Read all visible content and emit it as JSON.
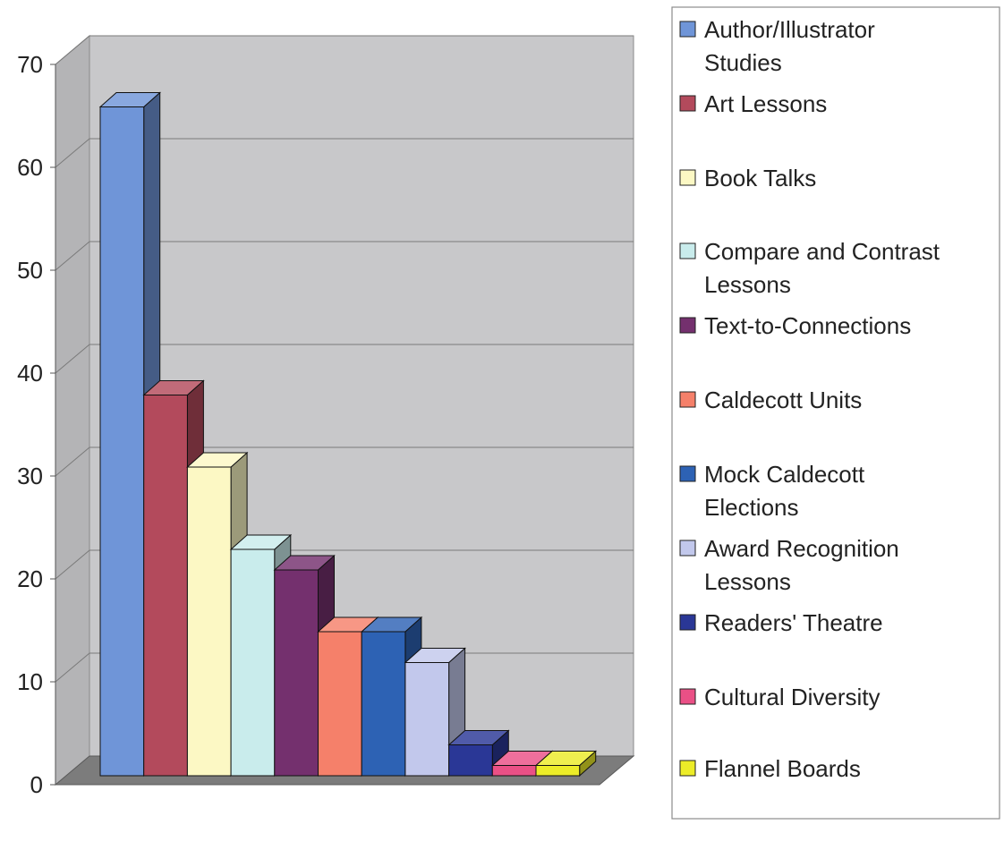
{
  "chart_data": {
    "type": "bar",
    "categories": [
      "Author/Illustrator Studies",
      "Art Lessons",
      "Book Talks",
      "Compare and Contrast Lessons",
      "Text-to-Connections",
      "Caldecott Units",
      "Mock Caldecott Elections",
      "Award Recognition Lessons",
      "Readers' Theatre",
      "Cultural Diversity",
      "Flannel Boards"
    ],
    "values": [
      65,
      37,
      30,
      22,
      20,
      14,
      14,
      11,
      3,
      1,
      1
    ],
    "colors": [
      "#6f95d8",
      "#b34a5c",
      "#fcf8c4",
      "#c9ecec",
      "#74306e",
      "#f5806a",
      "#2d62b4",
      "#c2c8ec",
      "#2a3796",
      "#ea5086",
      "#ecec28"
    ],
    "legend_lines": [
      [
        "Author/Illustrator",
        "Studies"
      ],
      [
        "Art Lessons"
      ],
      [
        "Book Talks"
      ],
      [
        "Compare and Contrast",
        "Lessons"
      ],
      [
        "Text-to-Connections"
      ],
      [
        "Caldecott Units"
      ],
      [
        "Mock Caldecott",
        "Elections"
      ],
      [
        "Award Recognition",
        "Lessons"
      ],
      [
        "Readers' Theatre"
      ],
      [
        "Cultural Diversity"
      ],
      [
        "Flannel Boards"
      ]
    ],
    "yticks": [
      0,
      10,
      20,
      30,
      40,
      50,
      60,
      70
    ],
    "ylim": [
      0,
      70
    ],
    "grid": true,
    "legend_position": "right",
    "title": "",
    "xlabel": "",
    "ylabel": ""
  }
}
